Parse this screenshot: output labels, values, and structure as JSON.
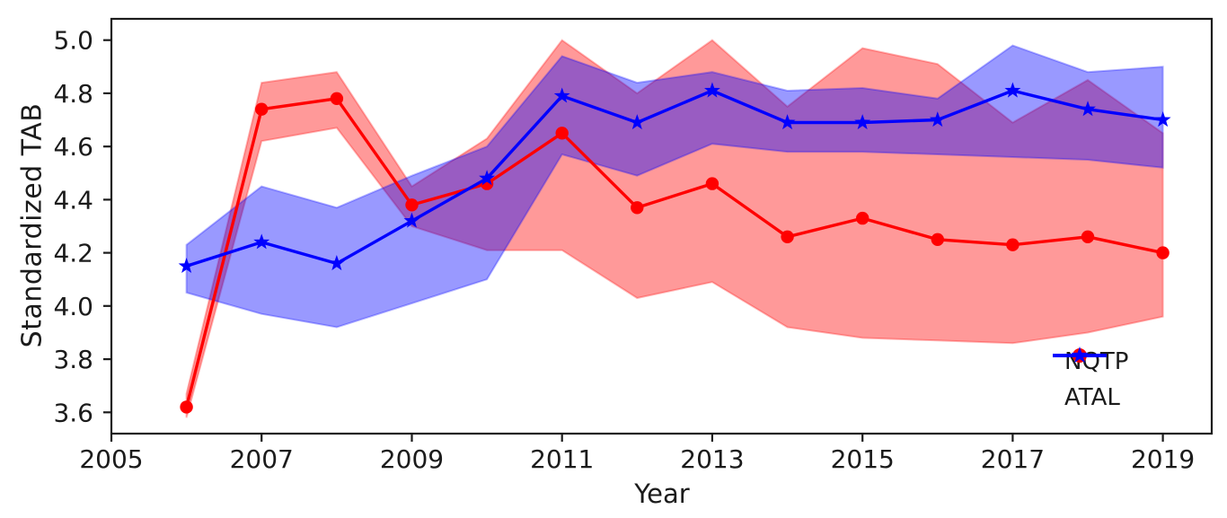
{
  "chart_data": {
    "type": "line",
    "title": "",
    "xlabel": "Year",
    "ylabel": "Standardized TAB",
    "x": [
      2006,
      2007,
      2008,
      2009,
      2010,
      2011,
      2012,
      2013,
      2014,
      2015,
      2016,
      2017,
      2018,
      2019
    ],
    "series": [
      {
        "name": "NQTP",
        "color": "#ff0000",
        "marker": "circle",
        "values": [
          3.62,
          4.74,
          4.78,
          4.38,
          4.46,
          4.65,
          4.37,
          4.46,
          4.26,
          4.33,
          4.25,
          4.23,
          4.26,
          4.2
        ],
        "band_upper": [
          3.67,
          4.84,
          4.88,
          4.45,
          4.63,
          5.0,
          4.8,
          5.0,
          4.75,
          4.97,
          4.91,
          4.69,
          4.85,
          4.65
        ],
        "band_lower": [
          3.58,
          4.62,
          4.67,
          4.3,
          4.21,
          4.21,
          4.03,
          4.09,
          3.92,
          3.88,
          3.87,
          3.86,
          3.9,
          3.96
        ]
      },
      {
        "name": "ATAL",
        "color": "#0000ff",
        "marker": "star",
        "values": [
          4.15,
          4.24,
          4.16,
          4.32,
          4.48,
          4.79,
          4.69,
          4.81,
          4.69,
          4.69,
          4.7,
          4.81,
          4.74,
          4.7
        ],
        "band_upper": [
          4.23,
          4.45,
          4.37,
          4.49,
          4.6,
          4.94,
          4.84,
          4.88,
          4.81,
          4.82,
          4.78,
          4.98,
          4.88,
          4.9
        ],
        "band_lower": [
          4.05,
          3.97,
          3.92,
          4.01,
          4.1,
          4.57,
          4.49,
          4.61,
          4.58,
          4.58,
          4.57,
          4.56,
          4.55,
          4.52
        ]
      }
    ],
    "band_alpha": 0.4,
    "xlim": [
      2005,
      2019.65
    ],
    "ylim": [
      3.52,
      5.08
    ],
    "xticks": [
      "2005",
      "2007",
      "2009",
      "2011",
      "2013",
      "2015",
      "2017",
      "2019"
    ],
    "yticks": [
      "3.6",
      "3.8",
      "4.0",
      "4.2",
      "4.4",
      "4.6",
      "4.8",
      "5.0"
    ],
    "grid": false,
    "legend": {
      "position": "lower-right",
      "frame": false,
      "entries": [
        "NQTP",
        "ATAL"
      ]
    },
    "axis_color": "#1b1b1b",
    "background": "#ffffff"
  }
}
